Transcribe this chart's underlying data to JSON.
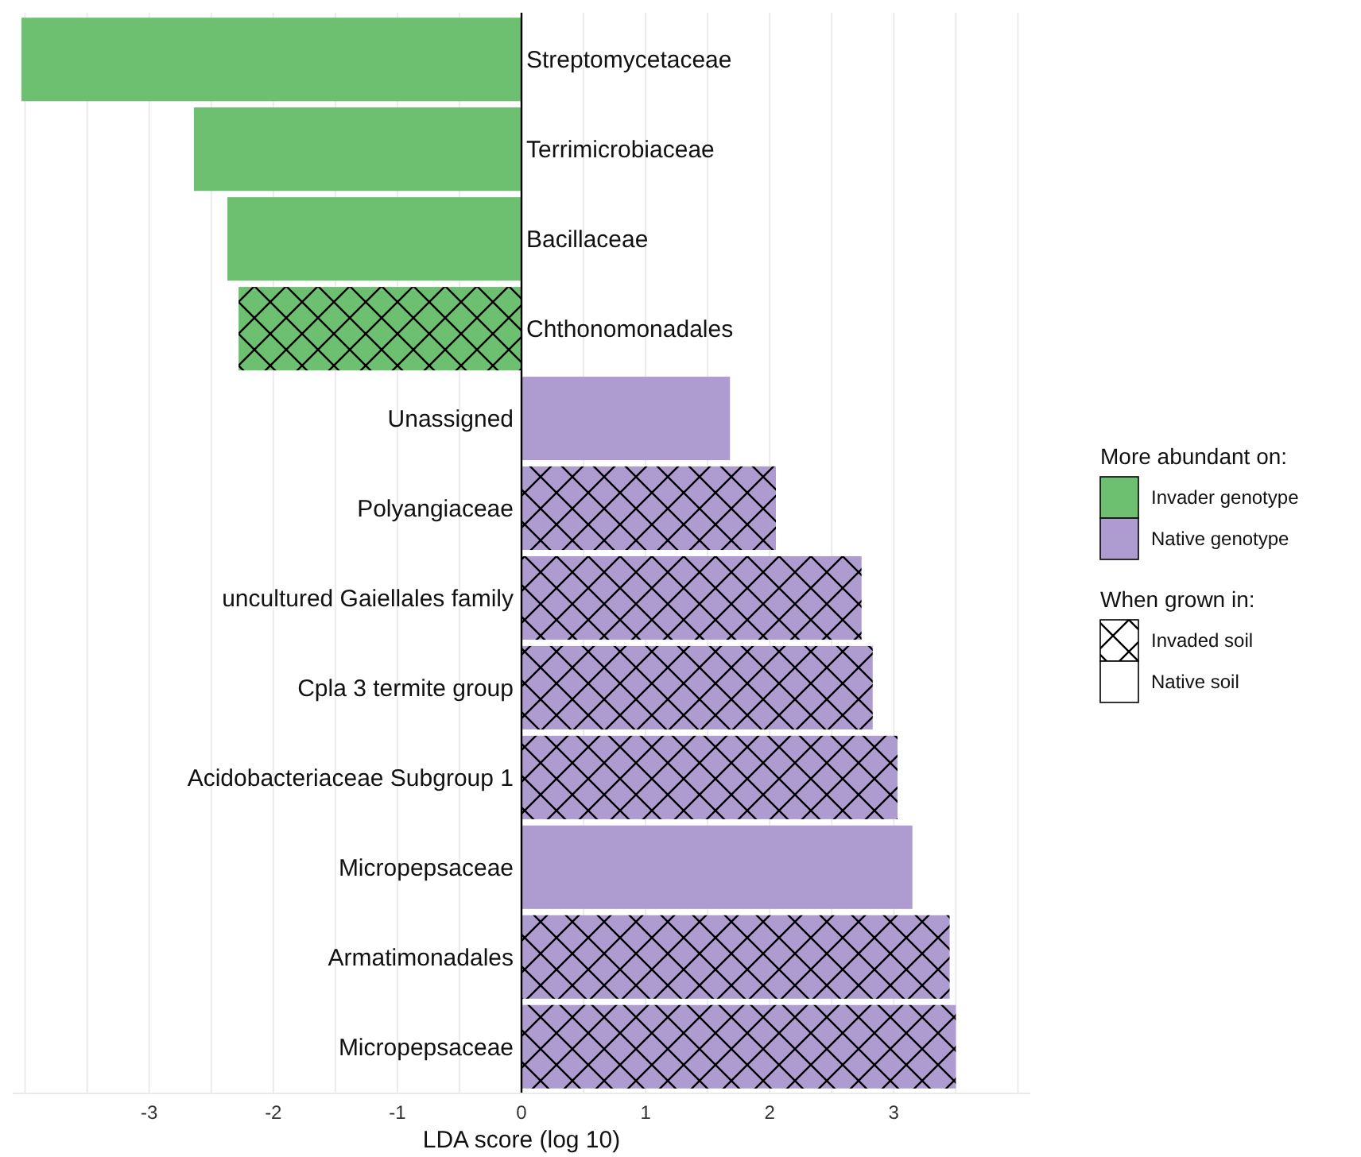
{
  "chart_data": {
    "type": "bar",
    "orientation": "horizontal",
    "categories": [
      "Streptomycetaceae",
      "Terrimicrobiaceae",
      "Bacillaceae",
      "Chthonomonadales",
      "Unassigned",
      "Polyangiaceae",
      "uncultured Gaiellales family",
      "Cpla 3 termite group",
      "Acidobacteriaceae Subgroup 1",
      "Micropepsaceae",
      "Armatimonadales",
      "Micropepsaceae"
    ],
    "series": [
      {
        "name": "Invader genotype",
        "color": "#6cc070",
        "values": [
          -4.03,
          -2.64,
          -2.37,
          null,
          null,
          null,
          null,
          null,
          null,
          null,
          null,
          null
        ]
      },
      {
        "name": "Native genotype",
        "color": "#ae9bcf",
        "values": [
          null,
          null,
          null,
          null,
          1.68,
          null,
          null,
          null,
          null,
          3.15,
          null,
          null
        ]
      },
      {
        "color": "#6cc070",
        "values": [
          null,
          null,
          null,
          -2.28,
          null,
          null,
          null,
          null,
          null,
          null,
          null,
          null
        ]
      },
      {
        "color": "#ae9bcf",
        "values": [
          null,
          null,
          null,
          null,
          null,
          2.05,
          2.74,
          2.83,
          3.03,
          null,
          3.45,
          3.5
        ]
      }
    ],
    "xlim": [
      -4.1,
      4.1
    ],
    "xticks": [
      {
        "value": -4,
        "label": null
      },
      {
        "value": -3.5,
        "label": null
      },
      -3,
      {
        "value": -2.5,
        "label": null
      },
      -2,
      {
        "value": -1.5,
        "label": null
      },
      -1,
      {
        "value": -0.5,
        "label": null
      },
      0,
      {
        "value": 0.5,
        "label": null
      },
      1,
      {
        "value": 1.5,
        "label": null
      },
      2,
      {
        "value": 2.5,
        "label": null
      },
      3,
      {
        "value": 3.5,
        "label": null
      },
      {
        "value": 4,
        "label": null
      }
    ],
    "xlabel": "LDA score (log 10)",
    "grid": "x",
    "legend": "right",
    "legend_title": "More abundant on:",
    "annotations": [
      "When grown in:",
      "Invaded soil",
      "Native soil"
    ]
  }
}
